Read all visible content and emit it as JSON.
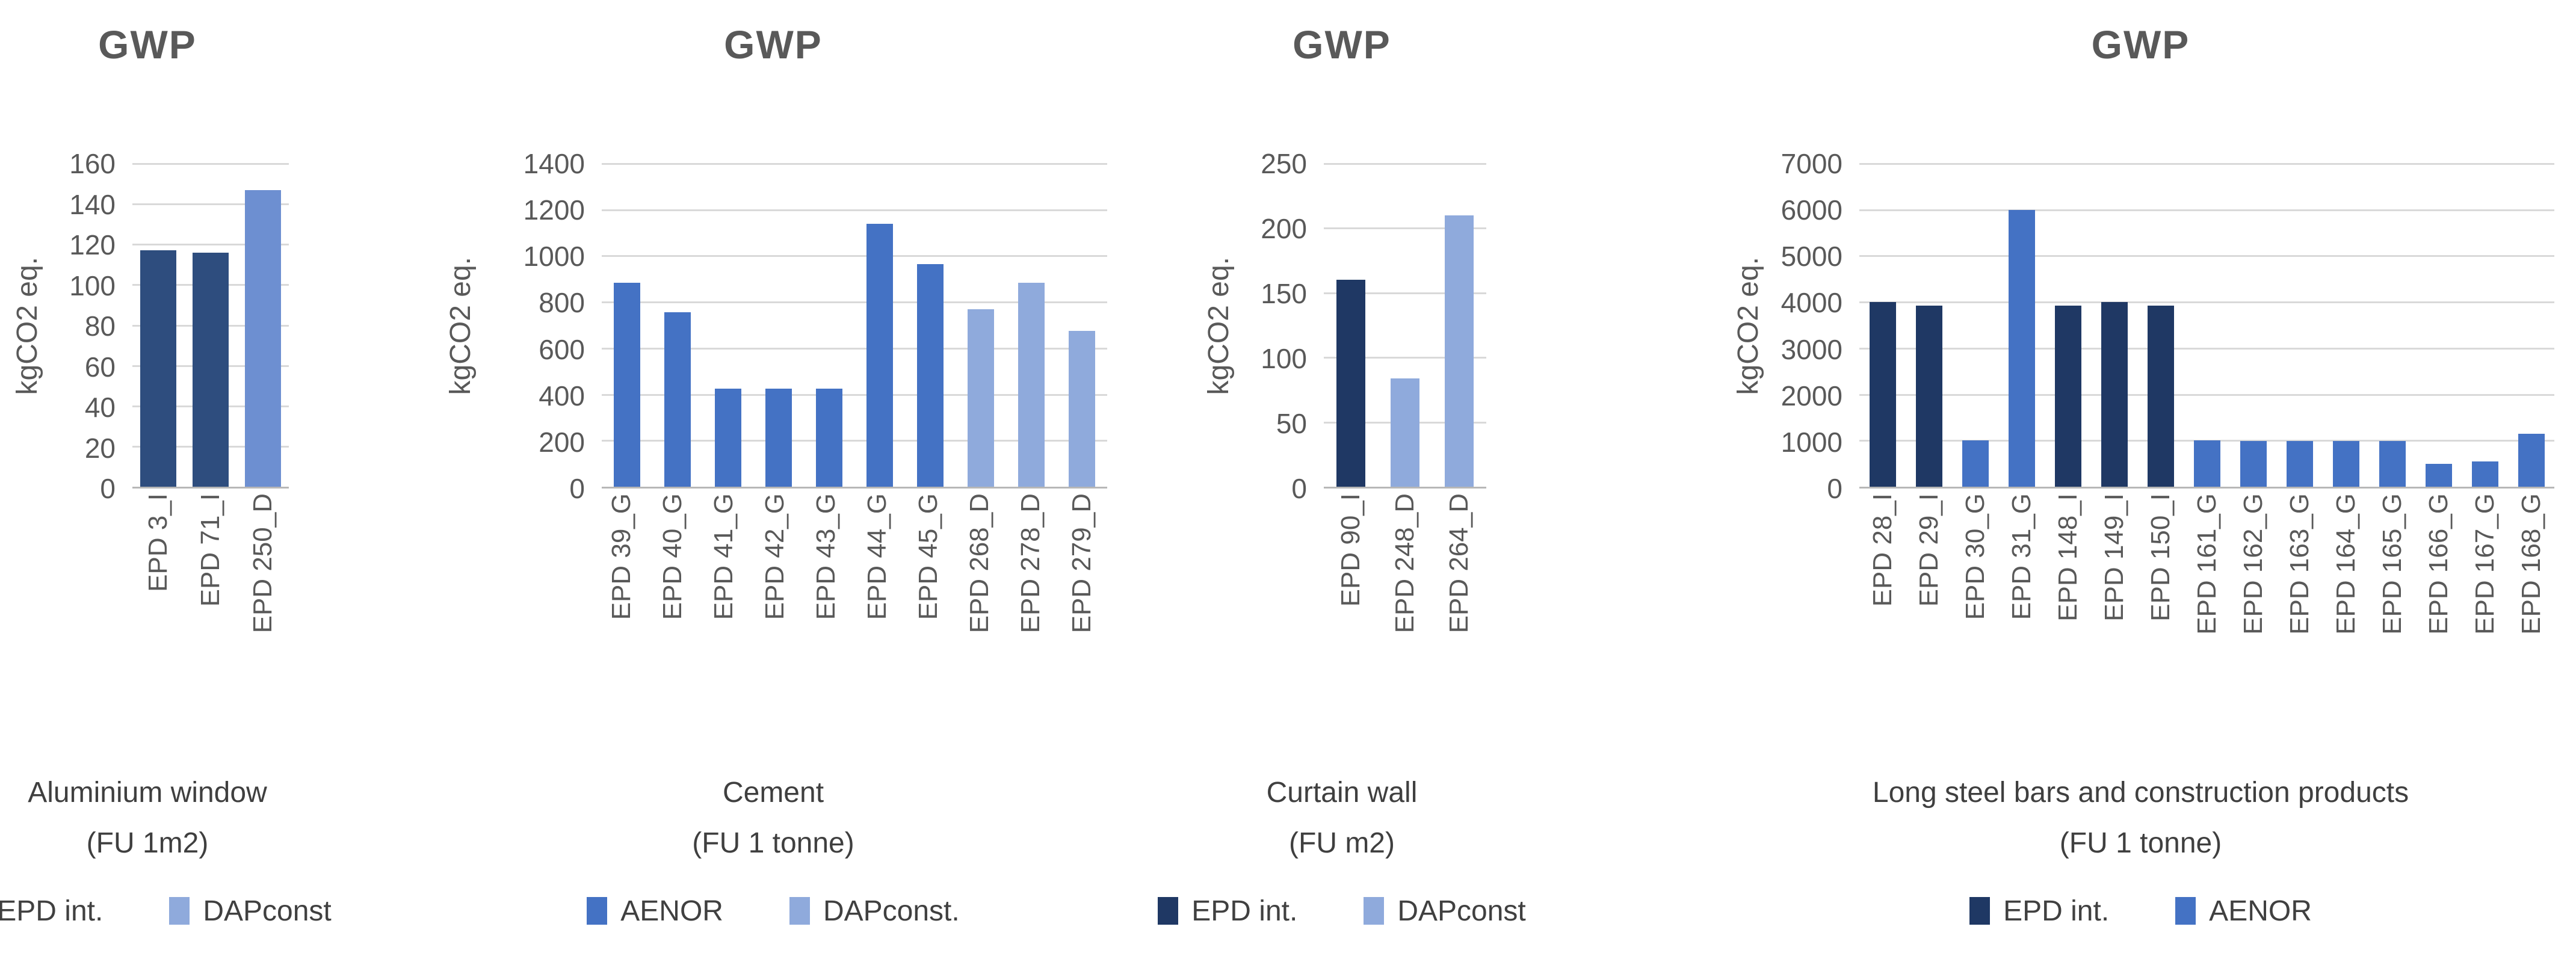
{
  "page_background": "#FFFFFF",
  "chart_data": [
    {
      "type": "bar",
      "title": "GWP",
      "ylabel": "kgCO2 eq.",
      "ylim": [
        0,
        160
      ],
      "ytick_step": 20,
      "yticks": [
        0,
        20,
        40,
        60,
        80,
        100,
        120,
        140,
        160
      ],
      "grid": true,
      "legend_position": "bottom",
      "categories": [
        "EPD 3_I",
        "EPD 71_I",
        "EPD 250_D"
      ],
      "values": [
        117,
        116,
        147
      ],
      "bar_series": [
        "EPD int.",
        "EPD int.",
        "DAPconst"
      ],
      "caption": [
        "Aluminium window",
        "(FU 1m2)"
      ],
      "legend": [
        {
          "name": "EPD int.",
          "color": "#2E4D7E"
        },
        {
          "name": "DAPconst",
          "color": "#8FAADC",
          "bar_color": "#6D8FD1"
        }
      ]
    },
    {
      "type": "bar",
      "title": "GWP",
      "ylabel": "kgCO2 eq.",
      "ylim": [
        0,
        1400
      ],
      "ytick_step": 200,
      "yticks": [
        0,
        200,
        400,
        600,
        800,
        1000,
        1200,
        1400
      ],
      "grid": true,
      "legend_position": "bottom",
      "categories": [
        "EPD 39_G",
        "EPD 40_G",
        "EPD 41_G",
        "EPD 42_G",
        "EPD 43_G",
        "EPD 44_G",
        "EPD 45_G",
        "EPD 268_D",
        "EPD 278_D",
        "EPD 279_D"
      ],
      "values": [
        885,
        755,
        425,
        425,
        425,
        1140,
        965,
        770,
        885,
        675
      ],
      "bar_series": [
        "AENOR",
        "AENOR",
        "AENOR",
        "AENOR",
        "AENOR",
        "AENOR",
        "AENOR",
        "DAPconst.",
        "DAPconst.",
        "DAPconst."
      ],
      "caption": [
        "Cement",
        "(FU 1 tonne)"
      ],
      "legend": [
        {
          "name": "AENOR",
          "color": "#4472C4"
        },
        {
          "name": "DAPconst.",
          "color": "#8FAADC"
        }
      ]
    },
    {
      "type": "bar",
      "title": "GWP",
      "ylabel": "kgCO2 eq.",
      "ylim": [
        0,
        250
      ],
      "ytick_step": 50,
      "yticks": [
        0,
        50,
        100,
        150,
        200,
        250
      ],
      "grid": true,
      "legend_position": "bottom",
      "categories": [
        "EPD 90_I",
        "EPD 248_D",
        "EPD 264_D"
      ],
      "values": [
        160,
        84,
        210
      ],
      "bar_series": [
        "EPD int.",
        "DAPconst",
        "DAPconst"
      ],
      "caption": [
        "Curtain wall",
        "(FU m2)"
      ],
      "legend": [
        {
          "name": "EPD int.",
          "color": "#1F3864"
        },
        {
          "name": "DAPconst",
          "color": "#8FAADC"
        }
      ]
    },
    {
      "type": "bar",
      "title": "GWP",
      "ylabel": "kgCO2 eq.",
      "ylim": [
        0,
        7000
      ],
      "ytick_step": 1000,
      "yticks": [
        0,
        1000,
        2000,
        3000,
        4000,
        5000,
        6000,
        7000
      ],
      "grid": true,
      "legend_position": "bottom",
      "categories": [
        "EPD 28_I",
        "EPD 29_I",
        "EPD 30_G",
        "EPD 31_G",
        "EPD 148_I",
        "EPD 149_I",
        "EPD 150_I",
        "EPD 161_G",
        "EPD 162_G",
        "EPD 163_G",
        "EPD 164_G",
        "EPD 165_G",
        "EPD 166_G",
        "EPD 167_G",
        "EPD 168_G"
      ],
      "values": [
        4000,
        3930,
        1000,
        6000,
        3930,
        4000,
        3930,
        1000,
        990,
        990,
        990,
        990,
        500,
        550,
        1150
      ],
      "bar_series": [
        "EPD int.",
        "EPD int.",
        "AENOR",
        "AENOR",
        "EPD int.",
        "EPD int.",
        "EPD int.",
        "AENOR",
        "AENOR",
        "AENOR",
        "AENOR",
        "AENOR",
        "AENOR",
        "AENOR",
        "AENOR"
      ],
      "caption": [
        "Long steel bars and construction products",
        "(FU 1 tonne)"
      ],
      "legend": [
        {
          "name": "EPD int.",
          "color": "#1F3864"
        },
        {
          "name": "AENOR",
          "color": "#4472C4"
        }
      ]
    }
  ]
}
